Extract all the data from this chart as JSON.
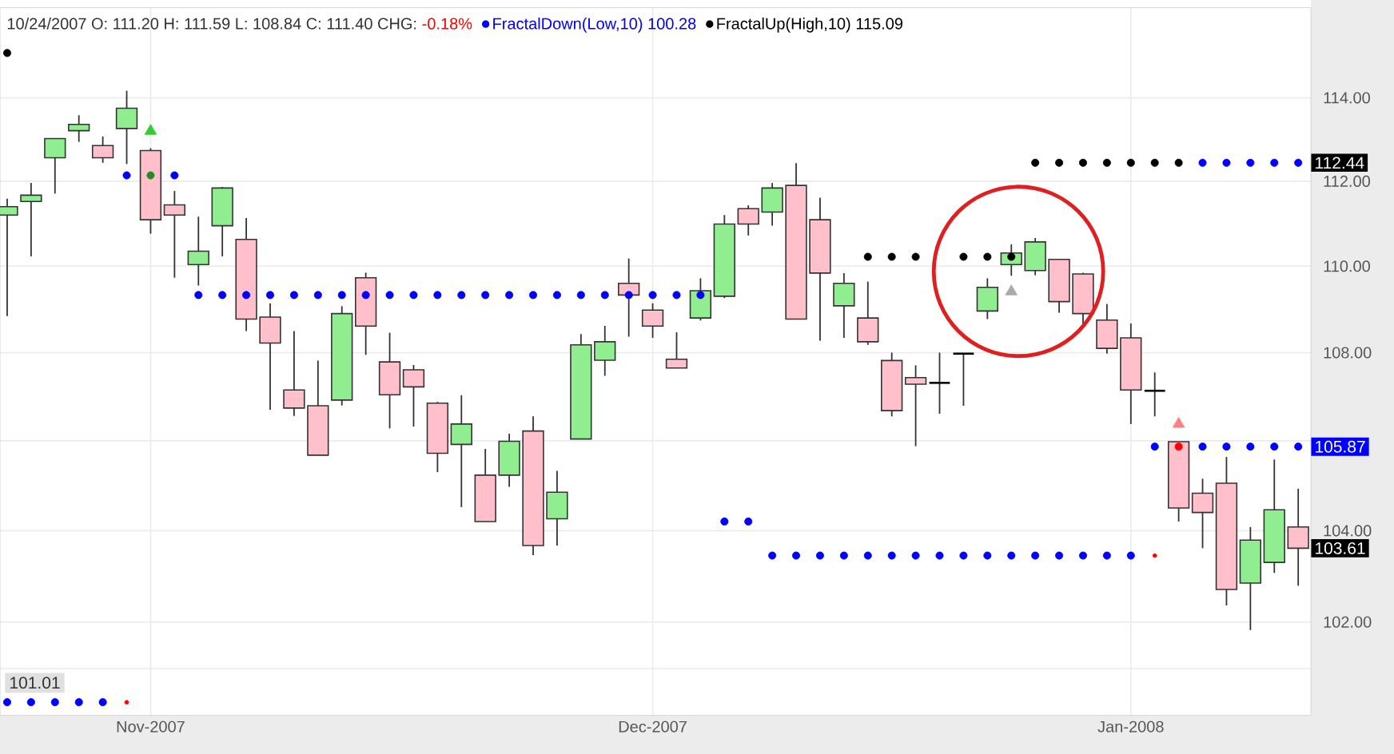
{
  "chart_data": {
    "type": "candlestick",
    "log": "y",
    "grid": true,
    "legend": "top left",
    "categories": [
      null,
      null,
      null,
      null,
      null,
      null,
      "Nov-2007",
      null,
      null,
      null,
      null,
      null,
      null,
      null,
      null,
      null,
      null,
      null,
      null,
      null,
      null,
      null,
      null,
      null,
      null,
      null,
      null,
      "Dec-2007",
      null,
      null,
      null,
      null,
      null,
      null,
      null,
      null,
      null,
      null,
      null,
      null,
      null,
      null,
      null,
      null,
      null,
      null,
      null,
      "Jan-2008",
      null,
      null,
      null,
      null,
      null,
      null,
      null
    ],
    "ohlc": [
      [
        111.2,
        111.59,
        108.84,
        111.4
      ],
      [
        111.52,
        111.96,
        110.23,
        111.67
      ],
      [
        112.56,
        113.02,
        111.71,
        113.02
      ],
      [
        113.21,
        113.58,
        112.94,
        113.36
      ],
      [
        112.85,
        113.07,
        112.44,
        112.56
      ],
      [
        113.26,
        114.17,
        112.41,
        113.75
      ],
      [
        112.73,
        112.79,
        110.76,
        111.09
      ],
      [
        111.44,
        111.77,
        109.73,
        111.2
      ],
      [
        110.04,
        111.16,
        109.55,
        110.35
      ],
      [
        110.95,
        111.86,
        110.23,
        111.84
      ],
      [
        110.63,
        111.13,
        108.5,
        108.77
      ],
      [
        108.82,
        109.14,
        106.7,
        108.22
      ],
      [
        107.15,
        108.5,
        106.56,
        106.74
      ],
      [
        106.79,
        107.82,
        105.68,
        105.68
      ],
      [
        106.92,
        109.07,
        106.8,
        108.9
      ],
      [
        109.73,
        109.85,
        107.95,
        108.61
      ],
      [
        107.79,
        108.46,
        106.28,
        107.04
      ],
      [
        107.61,
        107.72,
        106.32,
        107.22
      ],
      [
        106.85,
        106.88,
        105.3,
        105.72
      ],
      [
        105.92,
        107.03,
        104.52,
        106.38
      ],
      [
        105.23,
        105.82,
        104.2,
        104.2
      ],
      [
        105.23,
        106.16,
        104.97,
        105.99
      ],
      [
        106.22,
        106.55,
        103.46,
        103.67
      ],
      [
        104.26,
        105.33,
        103.67,
        104.85
      ],
      [
        106.04,
        108.43,
        106.04,
        108.18
      ],
      [
        107.83,
        108.62,
        107.47,
        108.25
      ],
      [
        109.6,
        110.18,
        108.37,
        109.33
      ],
      [
        108.98,
        109.14,
        108.34,
        108.61
      ],
      [
        107.85,
        108.47,
        107.65,
        107.65
      ],
      [
        108.8,
        109.72,
        108.74,
        109.43
      ],
      [
        109.3,
        111.2,
        109.26,
        110.99
      ],
      [
        111.35,
        111.43,
        110.72,
        110.99
      ],
      [
        111.27,
        111.96,
        110.95,
        111.84
      ],
      [
        111.9,
        112.43,
        108.77,
        108.77
      ],
      [
        111.09,
        111.61,
        108.28,
        109.84
      ],
      [
        109.08,
        109.84,
        108.34,
        109.6
      ],
      [
        108.8,
        109.64,
        108.18,
        108.25
      ],
      [
        107.82,
        108.0,
        106.55,
        106.68
      ],
      [
        107.43,
        107.71,
        105.88,
        107.28
      ],
      [
        107.31,
        108.0,
        106.61,
        107.31
      ],
      [
        107.98,
        107.98,
        106.79,
        107.98
      ],
      [
        108.96,
        109.72,
        108.77,
        109.51
      ],
      [
        110.04,
        110.51,
        109.78,
        110.31
      ],
      [
        109.9,
        110.66,
        109.79,
        110.57
      ],
      [
        110.16,
        110.16,
        108.92,
        109.18
      ],
      [
        109.82,
        109.85,
        108.62,
        108.9
      ],
      [
        108.75,
        109.12,
        107.98,
        108.1
      ],
      [
        108.34,
        108.67,
        106.38,
        107.15
      ],
      [
        107.13,
        107.55,
        106.55,
        107.13
      ],
      [
        105.98,
        105.98,
        104.2,
        104.5
      ],
      [
        104.83,
        105.15,
        103.61,
        104.4
      ],
      [
        105.05,
        105.64,
        102.36,
        102.71
      ],
      [
        102.85,
        104.08,
        101.83,
        103.79
      ],
      [
        103.3,
        105.58,
        103.07,
        104.46
      ],
      [
        104.08,
        104.93,
        102.79,
        103.61
      ]
    ],
    "colors": [
      "#90ee90",
      "#90ee90",
      "#90ee90",
      "#90ee90",
      "#ffc0cb",
      "#90ee90",
      "#ffc0cb",
      "#ffc0cb",
      "#90ee90",
      "#90ee90",
      "#ffc0cb",
      "#ffc0cb",
      "#ffc0cb",
      "#ffc0cb",
      "#90ee90",
      "#ffc0cb",
      "#ffc0cb",
      "#ffc0cb",
      "#ffc0cb",
      "#90ee90",
      "#ffc0cb",
      "#90ee90",
      "#ffc0cb",
      "#90ee90",
      "#90ee90",
      "#90ee90",
      "#ffc0cb",
      "#ffc0cb",
      "#ffc0cb",
      "#90ee90",
      "#90ee90",
      "#ffc0cb",
      "#90ee90",
      "#ffc0cb",
      "#ffc0cb",
      "#90ee90",
      "#ffc0cb",
      "#ffc0cb",
      "#ffc0cb",
      "#000000",
      "#000000",
      "#90ee90",
      "#90ee90",
      "#90ee90",
      "#ffc0cb",
      "#ffc0cb",
      "#ffc0cb",
      "#ffc0cb",
      "#000000",
      "#ffc0cb",
      "#ffc0cb",
      "#ffc0cb",
      "#90ee90",
      "#90ee90",
      "#ffc0cb"
    ],
    "series": [
      {
        "name": "FractalDown(Low,10)",
        "type": "scatter",
        "marker": "circle",
        "color": "#0000ff",
        "values": [
          100.28,
          100.28,
          100.28,
          100.28,
          100.28,
          112.14,
          112.14,
          112.14,
          109.33,
          109.33,
          109.33,
          109.33,
          109.33,
          109.33,
          109.33,
          109.33,
          109.33,
          109.33,
          109.33,
          109.33,
          109.33,
          109.33,
          109.33,
          109.33,
          109.33,
          109.33,
          109.33,
          109.33,
          109.33,
          109.33,
          104.2,
          104.2,
          103.45,
          103.45,
          103.45,
          103.45,
          103.45,
          103.45,
          103.45,
          103.45,
          103.45,
          103.45,
          103.45,
          103.45,
          103.45,
          103.45,
          103.45,
          103.45,
          105.87,
          105.87,
          105.87,
          105.87,
          105.87,
          105.87,
          105.87
        ],
        "colors": [
          "#0000ff",
          "#0000ff",
          "#0000ff",
          "#0000ff",
          "#0000ff",
          "#0000ff",
          "#228b22",
          "#0000ff",
          "#0000ff",
          "#0000ff",
          "#0000ff",
          "#0000ff",
          "#0000ff",
          "#0000ff",
          "#0000ff",
          "#0000ff",
          "#0000ff",
          "#0000ff",
          "#0000ff",
          "#0000ff",
          "#0000ff",
          "#0000ff",
          "#0000ff",
          "#0000ff",
          "#0000ff",
          "#0000ff",
          "#0000ff",
          "#0000ff",
          "#0000ff",
          "#0000ff",
          "#0000ff",
          "#0000ff",
          "#0000ff",
          "#0000ff",
          "#0000ff",
          "#0000ff",
          "#0000ff",
          "#0000ff",
          "#0000ff",
          "#0000ff",
          "#0000ff",
          "#0000ff",
          "#0000ff",
          "#0000ff",
          "#0000ff",
          "#0000ff",
          "#0000ff",
          "#0000ff",
          "#0000ff",
          "#ff0000",
          "#0000ff",
          "#0000ff",
          "#0000ff",
          "#0000ff",
          "#0000ff"
        ]
      },
      {
        "name": "FractalUp(High,10)",
        "type": "scatter",
        "marker": "circle",
        "color": "#000000",
        "values": [
          115.09,
          null,
          null,
          null,
          null,
          null,
          null,
          null,
          null,
          null,
          null,
          null,
          null,
          null,
          null,
          null,
          null,
          null,
          null,
          null,
          null,
          null,
          null,
          null,
          null,
          null,
          null,
          null,
          null,
          null,
          null,
          null,
          null,
          null,
          null,
          null,
          110.22,
          110.22,
          110.22,
          null,
          110.22,
          110.22,
          110.22,
          112.44,
          112.44,
          112.44,
          112.44,
          112.44,
          112.44,
          112.44,
          112.44,
          112.44,
          112.44,
          112.44,
          112.44
        ],
        "colors": [
          "#000000",
          null,
          null,
          null,
          null,
          null,
          null,
          null,
          null,
          null,
          null,
          null,
          null,
          null,
          null,
          null,
          null,
          null,
          null,
          null,
          null,
          null,
          null,
          null,
          null,
          null,
          null,
          null,
          null,
          null,
          null,
          null,
          null,
          null,
          null,
          null,
          "#000000",
          "#000000",
          "#000000",
          null,
          "#000000",
          "#000000",
          "#000000",
          "#000000",
          "#000000",
          "#000000",
          "#000000",
          "#000000",
          "#000000",
          "#000000",
          "#0000ff",
          "#0000ff",
          "#0000ff",
          "#0000ff",
          "#0000ff"
        ]
      },
      {
        "type": "scatter",
        "marker": "circle",
        "color": "#ff0000",
        "values": [
          null,
          null,
          null,
          null,
          null,
          100.28,
          null,
          null,
          null,
          null,
          null,
          null,
          null,
          null,
          null,
          null,
          null,
          null,
          null,
          null,
          null,
          null,
          null,
          null,
          null,
          null,
          null,
          null,
          null,
          null,
          null,
          null,
          null,
          null,
          null,
          null,
          null,
          null,
          null,
          null,
          null,
          null,
          null,
          null,
          null,
          null,
          null,
          null,
          103.45,
          null,
          null,
          null,
          null,
          null,
          null
        ]
      },
      {
        "type": "scatter",
        "marker": "triangle",
        "values": [
          null,
          null,
          null,
          null,
          null,
          null,
          113.2,
          null,
          null,
          null,
          null,
          null,
          null,
          null,
          null,
          null,
          null,
          null,
          null,
          null,
          null,
          null,
          null,
          null,
          null,
          null,
          null,
          null,
          null,
          null,
          null,
          null,
          null,
          null,
          null,
          null,
          null,
          null,
          null,
          null,
          null,
          null,
          109.41,
          null,
          null,
          null,
          null,
          null,
          null,
          106.38,
          null,
          null,
          null,
          null,
          null
        ],
        "colors": [
          null,
          null,
          null,
          null,
          null,
          null,
          "#33cc33",
          null,
          null,
          null,
          null,
          null,
          null,
          null,
          null,
          null,
          null,
          null,
          null,
          null,
          null,
          null,
          null,
          null,
          null,
          null,
          null,
          null,
          null,
          null,
          null,
          null,
          null,
          null,
          null,
          null,
          null,
          null,
          null,
          null,
          null,
          null,
          "#aaaaaa",
          null,
          null,
          null,
          null,
          null,
          null,
          "#ff8080",
          null,
          null,
          null,
          null,
          null
        ]
      }
    ],
    "ylim": [
      100,
      116.2
    ],
    "yticks": [
      {
        "value": 101,
        "label": null
      },
      {
        "value": 102,
        "label": "102.00"
      },
      {
        "value": 104,
        "label": "104.00"
      },
      {
        "value": 106,
        "label": null
      },
      {
        "value": 108,
        "label": "108.00"
      },
      {
        "value": 110,
        "label": "110.00"
      },
      {
        "value": 112,
        "label": "112.00"
      },
      {
        "value": 114,
        "label": "114.00"
      }
    ],
    "annotations": [
      "10/24/2007 O: 111.20 H: 111.59 L: 108.84 C: 111.40 CHG:",
      "-0.18%",
      "100.28",
      "115.09",
      "101.01",
      {
        "text": "112.44",
        "y": 112.44
      },
      {
        "text": "105.87",
        "y": 105.87
      },
      {
        "text": "103.61",
        "y": 103.61
      }
    ]
  }
}
